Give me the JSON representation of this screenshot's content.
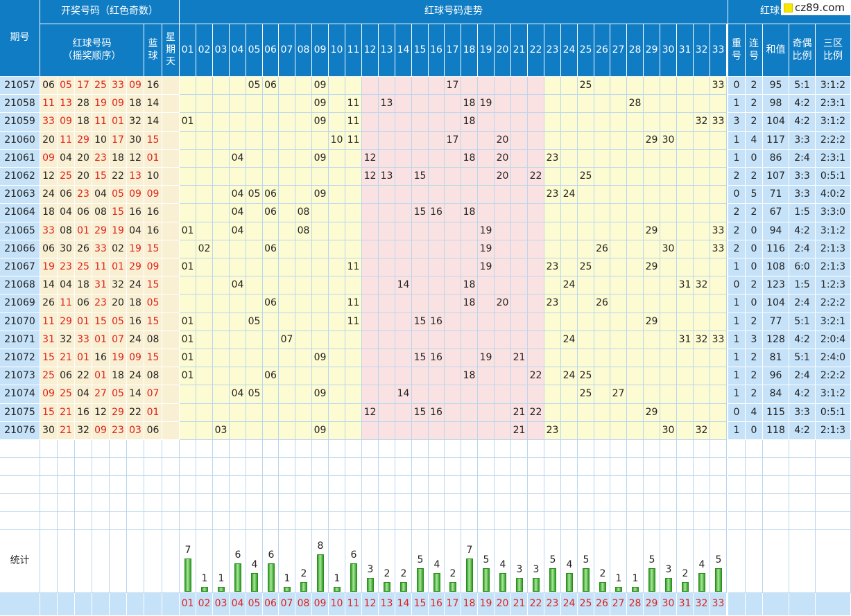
{
  "headers": {
    "period": "期号",
    "draw_group": "开奖号码（红色奇数）",
    "red_seq": "红球号码\n（摇奖顺序）",
    "blue": "蓝\n球",
    "weekday": "星\n期\n天",
    "trend_group": "红球号码走势",
    "analysis_group": "红球号码分析",
    "repeat": "重\n号",
    "consec": "连\n号",
    "sum": "和值",
    "odd_even": "奇偶\n比例",
    "three_zone": "三区\n比例"
  },
  "numbers": [
    "01",
    "02",
    "03",
    "04",
    "05",
    "06",
    "07",
    "08",
    "09",
    "10",
    "11",
    "12",
    "13",
    "14",
    "15",
    "16",
    "17",
    "18",
    "19",
    "20",
    "21",
    "22",
    "23",
    "24",
    "25",
    "26",
    "27",
    "28",
    "29",
    "30",
    "31",
    "32",
    "33"
  ],
  "rows": [
    {
      "period": "21057",
      "reds": [
        "06",
        "05",
        "17",
        "25",
        "33",
        "09"
      ],
      "blue": "16",
      "repeat": "0",
      "consec": "2",
      "sum": "95",
      "odd_even": "5:1",
      "zone": "3:1:2"
    },
    {
      "period": "21058",
      "reds": [
        "11",
        "13",
        "28",
        "19",
        "09",
        "18"
      ],
      "blue": "14",
      "repeat": "1",
      "consec": "2",
      "sum": "98",
      "odd_even": "4:2",
      "zone": "2:3:1"
    },
    {
      "period": "21059",
      "reds": [
        "33",
        "09",
        "18",
        "11",
        "01",
        "32"
      ],
      "blue": "14",
      "repeat": "3",
      "consec": "2",
      "sum": "104",
      "odd_even": "4:2",
      "zone": "3:1:2"
    },
    {
      "period": "21060",
      "reds": [
        "20",
        "11",
        "29",
        "10",
        "17",
        "30"
      ],
      "blue": "15",
      "repeat": "1",
      "consec": "4",
      "sum": "117",
      "odd_even": "3:3",
      "zone": "2:2:2"
    },
    {
      "period": "21061",
      "reds": [
        "09",
        "04",
        "20",
        "23",
        "18",
        "12"
      ],
      "blue": "01",
      "repeat": "1",
      "consec": "0",
      "sum": "86",
      "odd_even": "2:4",
      "zone": "2:3:1"
    },
    {
      "period": "21062",
      "reds": [
        "12",
        "25",
        "20",
        "15",
        "22",
        "13"
      ],
      "blue": "10",
      "repeat": "2",
      "consec": "2",
      "sum": "107",
      "odd_even": "3:3",
      "zone": "0:5:1"
    },
    {
      "period": "21063",
      "reds": [
        "24",
        "06",
        "23",
        "04",
        "05",
        "09"
      ],
      "blue": "09",
      "repeat": "0",
      "consec": "5",
      "sum": "71",
      "odd_even": "3:3",
      "zone": "4:0:2"
    },
    {
      "period": "21064",
      "reds": [
        "18",
        "04",
        "06",
        "08",
        "15",
        "16"
      ],
      "blue": "16",
      "repeat": "2",
      "consec": "2",
      "sum": "67",
      "odd_even": "1:5",
      "zone": "3:3:0"
    },
    {
      "period": "21065",
      "reds": [
        "33",
        "08",
        "01",
        "29",
        "19",
        "04"
      ],
      "blue": "16",
      "repeat": "2",
      "consec": "0",
      "sum": "94",
      "odd_even": "4:2",
      "zone": "3:1:2"
    },
    {
      "period": "21066",
      "reds": [
        "06",
        "30",
        "26",
        "33",
        "02",
        "19"
      ],
      "blue": "15",
      "repeat": "2",
      "consec": "0",
      "sum": "116",
      "odd_even": "2:4",
      "zone": "2:1:3"
    },
    {
      "period": "21067",
      "reds": [
        "19",
        "23",
        "25",
        "11",
        "01",
        "29"
      ],
      "blue": "09",
      "repeat": "1",
      "consec": "0",
      "sum": "108",
      "odd_even": "6:0",
      "zone": "2:1:3"
    },
    {
      "period": "21068",
      "reds": [
        "14",
        "04",
        "18",
        "31",
        "32",
        "24"
      ],
      "blue": "15",
      "repeat": "0",
      "consec": "2",
      "sum": "123",
      "odd_even": "1:5",
      "zone": "1:2:3"
    },
    {
      "period": "21069",
      "reds": [
        "26",
        "11",
        "06",
        "23",
        "20",
        "18"
      ],
      "blue": "05",
      "repeat": "1",
      "consec": "0",
      "sum": "104",
      "odd_even": "2:4",
      "zone": "2:2:2"
    },
    {
      "period": "21070",
      "reds": [
        "11",
        "29",
        "01",
        "15",
        "05",
        "16"
      ],
      "blue": "15",
      "repeat": "1",
      "consec": "2",
      "sum": "77",
      "odd_even": "5:1",
      "zone": "3:2:1"
    },
    {
      "period": "21071",
      "reds": [
        "31",
        "32",
        "33",
        "01",
        "07",
        "24"
      ],
      "blue": "08",
      "repeat": "1",
      "consec": "3",
      "sum": "128",
      "odd_even": "4:2",
      "zone": "2:0:4"
    },
    {
      "period": "21072",
      "reds": [
        "15",
        "21",
        "01",
        "16",
        "19",
        "09"
      ],
      "blue": "15",
      "repeat": "1",
      "consec": "2",
      "sum": "81",
      "odd_even": "5:1",
      "zone": "2:4:0"
    },
    {
      "period": "21073",
      "reds": [
        "25",
        "06",
        "22",
        "01",
        "18",
        "24"
      ],
      "blue": "08",
      "repeat": "1",
      "consec": "2",
      "sum": "96",
      "odd_even": "2:4",
      "zone": "2:2:2"
    },
    {
      "period": "21074",
      "reds": [
        "09",
        "25",
        "04",
        "27",
        "05",
        "14"
      ],
      "blue": "07",
      "repeat": "1",
      "consec": "2",
      "sum": "84",
      "odd_even": "4:2",
      "zone": "3:1:2"
    },
    {
      "period": "21075",
      "reds": [
        "15",
        "21",
        "16",
        "12",
        "29",
        "22"
      ],
      "blue": "01",
      "repeat": "0",
      "consec": "4",
      "sum": "115",
      "odd_even": "3:3",
      "zone": "0:5:1"
    },
    {
      "period": "21076",
      "reds": [
        "30",
        "21",
        "32",
        "09",
        "23",
        "03"
      ],
      "blue": "06",
      "repeat": "1",
      "consec": "0",
      "sum": "118",
      "odd_even": "4:2",
      "zone": "2:1:3"
    }
  ],
  "stats": {
    "label": "统计",
    "counts": [
      7,
      1,
      1,
      6,
      4,
      6,
      1,
      2,
      8,
      1,
      6,
      3,
      2,
      2,
      5,
      4,
      2,
      7,
      5,
      4,
      3,
      3,
      5,
      4,
      5,
      2,
      1,
      1,
      5,
      3,
      2,
      4,
      5
    ]
  },
  "colors": {
    "header": "#0f7cc4",
    "red_text": "#e0201a",
    "bar_green": "#2f9a22"
  },
  "logo": {
    "text": "cz89.com"
  }
}
